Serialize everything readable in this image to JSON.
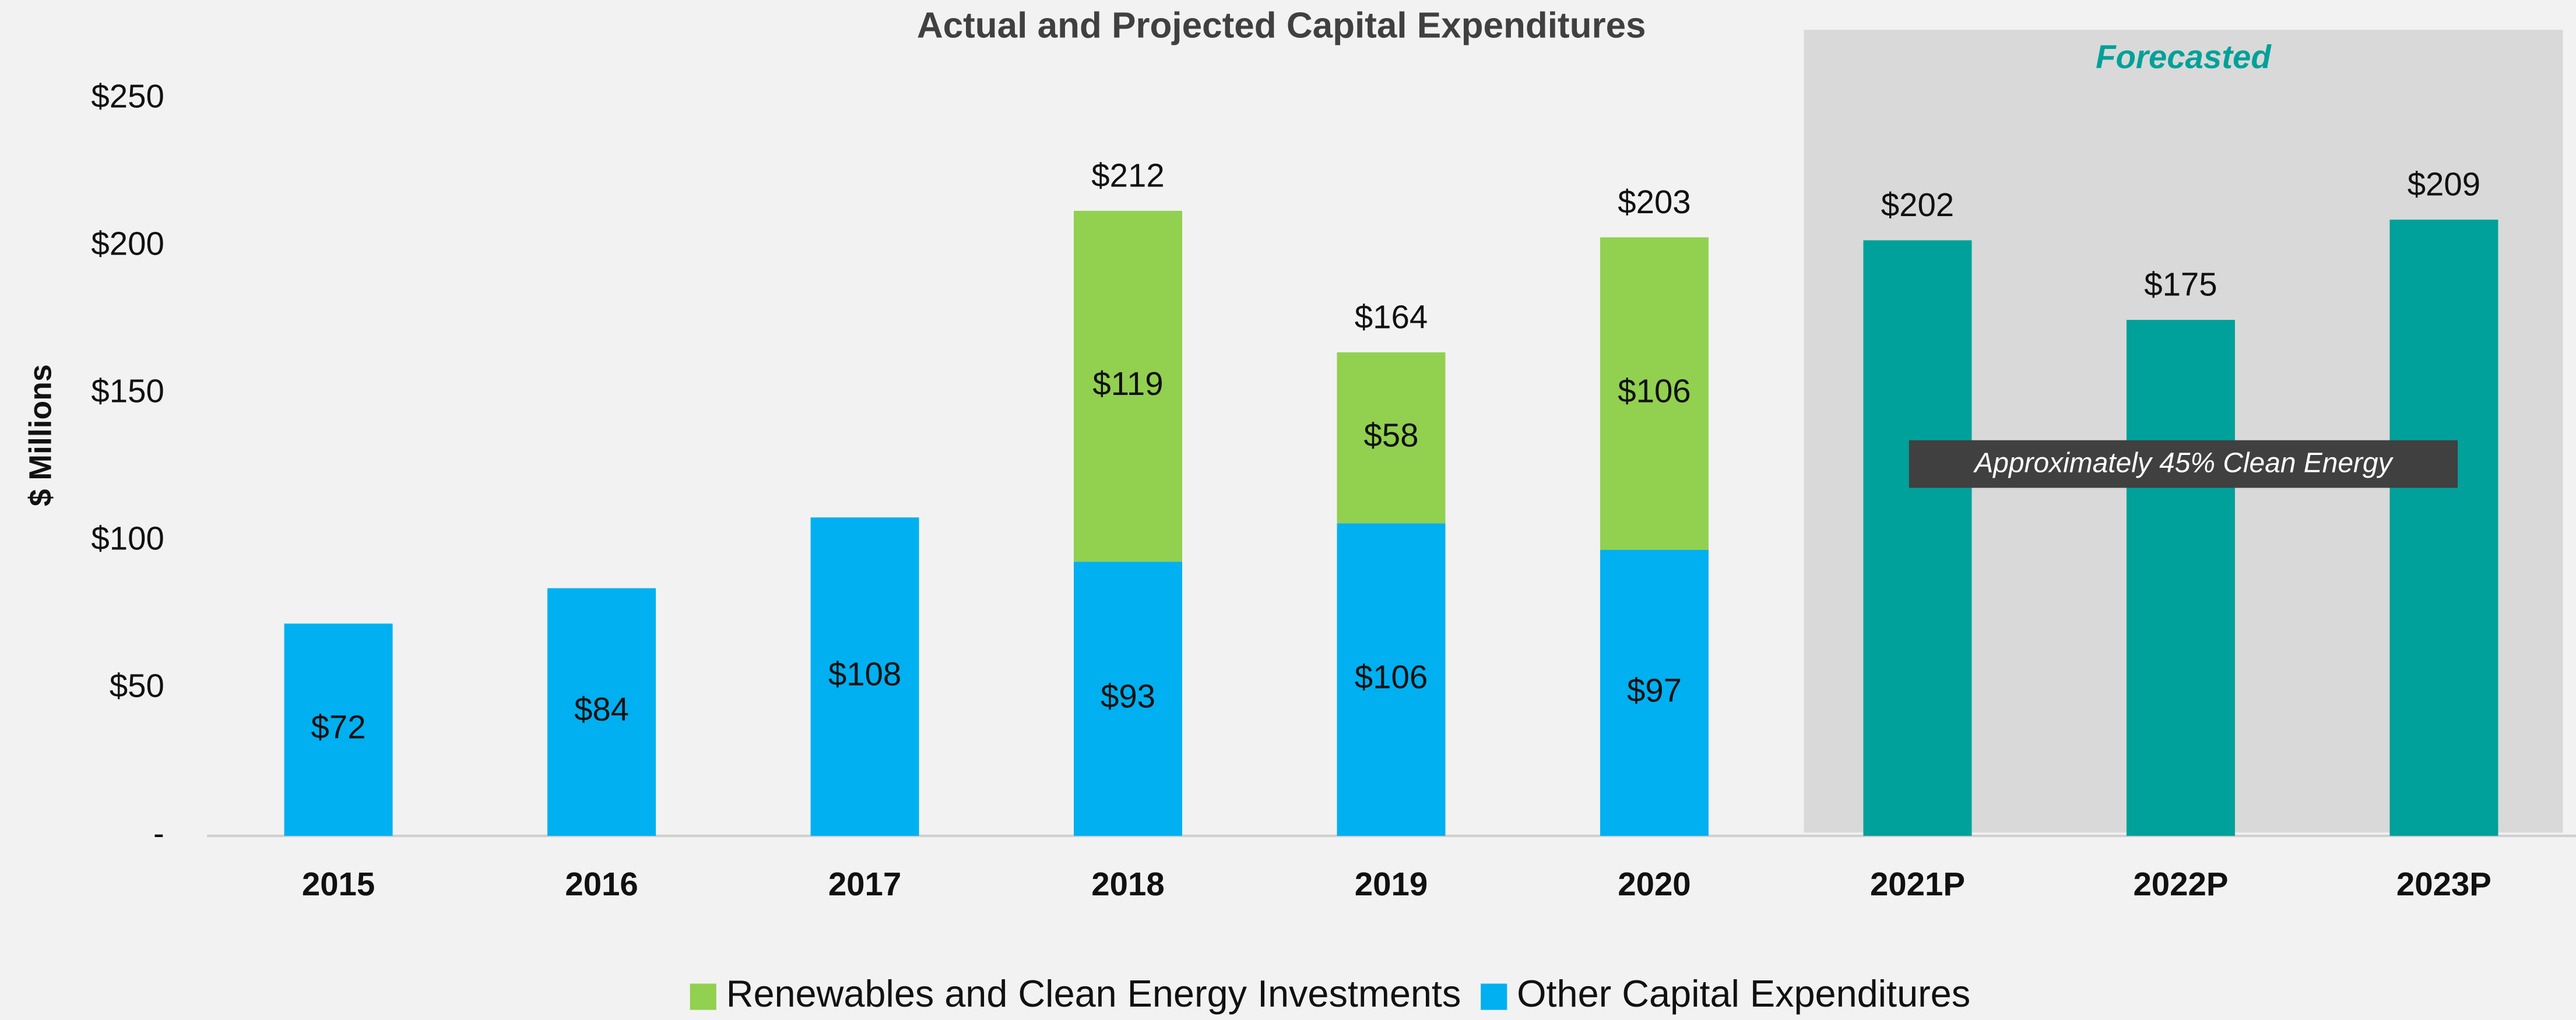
{
  "chart_data": {
    "type": "stacked_bar",
    "title": "Actual and Projected Capital Expenditures",
    "y_label": "$ Millions",
    "categories": [
      "2015",
      "2016",
      "2017",
      "2018",
      "2019",
      "2020",
      "2021P",
      "2022P",
      "2023P"
    ],
    "series": [
      {
        "name": "Renewables and Clean Energy Investments",
        "color": "#92d050",
        "values": [
          null,
          null,
          null,
          119,
          58,
          106,
          null,
          null,
          null
        ],
        "value_labels": [
          null,
          null,
          null,
          "$119",
          "$58",
          "$106",
          null,
          null,
          null
        ]
      },
      {
        "name": "Other Capital Expenditures",
        "color": "#00b0f0",
        "values": [
          72,
          84,
          108,
          93,
          106,
          97,
          null,
          null,
          null
        ],
        "value_labels": [
          "$72",
          "$84",
          "$108",
          "$93",
          "$106",
          "$97",
          null,
          null,
          null
        ]
      }
    ],
    "totals": {
      "values": [
        null,
        null,
        null,
        212,
        164,
        203,
        null,
        null,
        null
      ],
      "value_labels": [
        null,
        null,
        null,
        "$212",
        "$164",
        "$203",
        null,
        null,
        null
      ]
    },
    "forecast": {
      "label": "Forecasted",
      "color": "#00a19a",
      "values": [
        null,
        null,
        null,
        null,
        null,
        null,
        202,
        175,
        209
      ],
      "value_labels": [
        null,
        null,
        null,
        null,
        null,
        null,
        "$202",
        "$175",
        "$209"
      ]
    },
    "annotation": "Approximately 45% Clean Energy",
    "ylim": [
      0,
      250
    ],
    "yticks": [
      {
        "value": 0,
        "label": "-"
      },
      {
        "value": 50,
        "label": "$50"
      },
      {
        "value": 100,
        "label": "$100"
      },
      {
        "value": 150,
        "label": "$150"
      },
      {
        "value": 200,
        "label": "$200"
      },
      {
        "value": 250,
        "label": "$250"
      }
    ],
    "legend": "bottom"
  }
}
